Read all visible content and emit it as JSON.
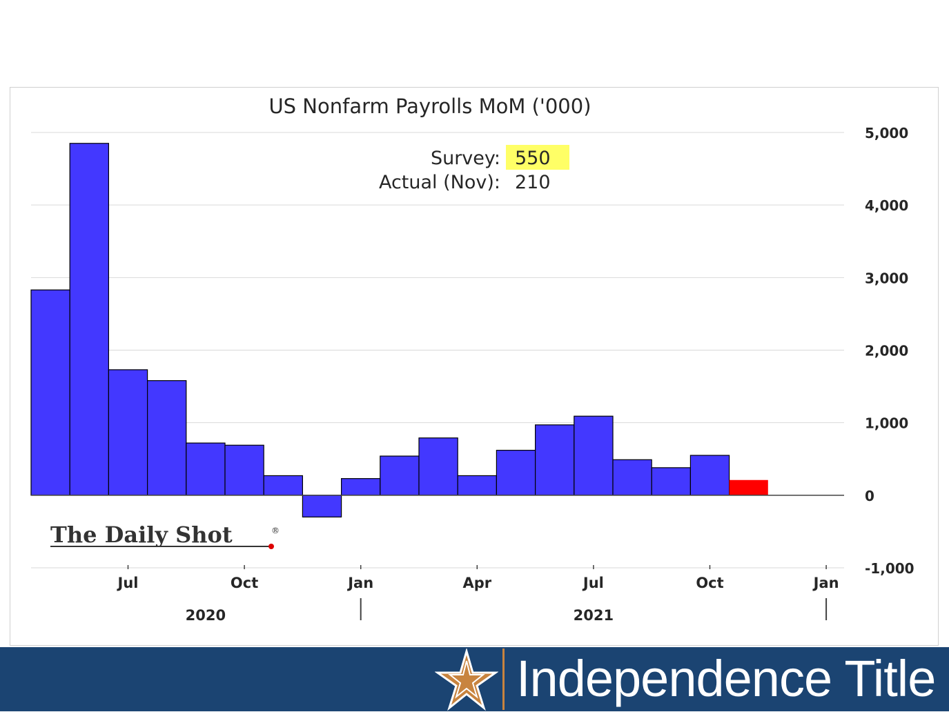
{
  "chart_data": {
    "type": "bar",
    "title": "US Nonfarm Payrolls MoM ('000)",
    "annotation": {
      "survey_label": "Survey:",
      "survey_value": "550",
      "actual_label": "Actual (Nov):",
      "actual_value": "210"
    },
    "months": [
      "2020-05",
      "2020-06",
      "2020-07",
      "2020-08",
      "2020-09",
      "2020-10",
      "2020-11",
      "2020-12",
      "2021-01",
      "2021-02",
      "2021-03",
      "2021-04",
      "2021-05",
      "2021-06",
      "2021-07",
      "2021-08",
      "2021-09",
      "2021-10",
      "2021-11"
    ],
    "values": [
      2830,
      4850,
      1730,
      1580,
      720,
      690,
      270,
      -300,
      230,
      540,
      790,
      270,
      620,
      970,
      1090,
      490,
      380,
      550,
      210
    ],
    "highlight_index": 18,
    "ylim": [
      -1000,
      5000
    ],
    "yticks": [
      5000,
      4000,
      3000,
      2000,
      1000,
      0,
      -1000
    ],
    "ytick_labels": [
      "5,000",
      "4,000",
      "3,000",
      "2,000",
      "1,000",
      "0",
      "-1,000"
    ],
    "xticks": [
      {
        "month": "2020-07",
        "label": "Jul"
      },
      {
        "month": "2020-10",
        "label": "Oct"
      },
      {
        "month": "2021-01",
        "label": "Jan"
      },
      {
        "month": "2021-04",
        "label": "Apr"
      },
      {
        "month": "2021-07",
        "label": "Jul"
      },
      {
        "month": "2021-10",
        "label": "Oct"
      },
      {
        "month": "2022-01",
        "label": "Jan"
      }
    ],
    "year_labels": [
      {
        "label": "2020",
        "center_month": "2020-09"
      },
      {
        "label": "2021",
        "center_month": "2021-07"
      }
    ],
    "year_separators": [
      "2021-01",
      "2022-01"
    ],
    "grid": true,
    "colors": {
      "bar": "#4338ff",
      "highlight": "#ff0000",
      "survey_highlight": "#ffff66",
      "grid": "#d9d9d9"
    }
  },
  "watermark": {
    "text": "The Daily Shot",
    "mark": "®"
  },
  "footer": {
    "brand": "Independence Title",
    "logo_icon": "star-icon",
    "bg": "#1b4472",
    "accent": "#c8843f"
  }
}
